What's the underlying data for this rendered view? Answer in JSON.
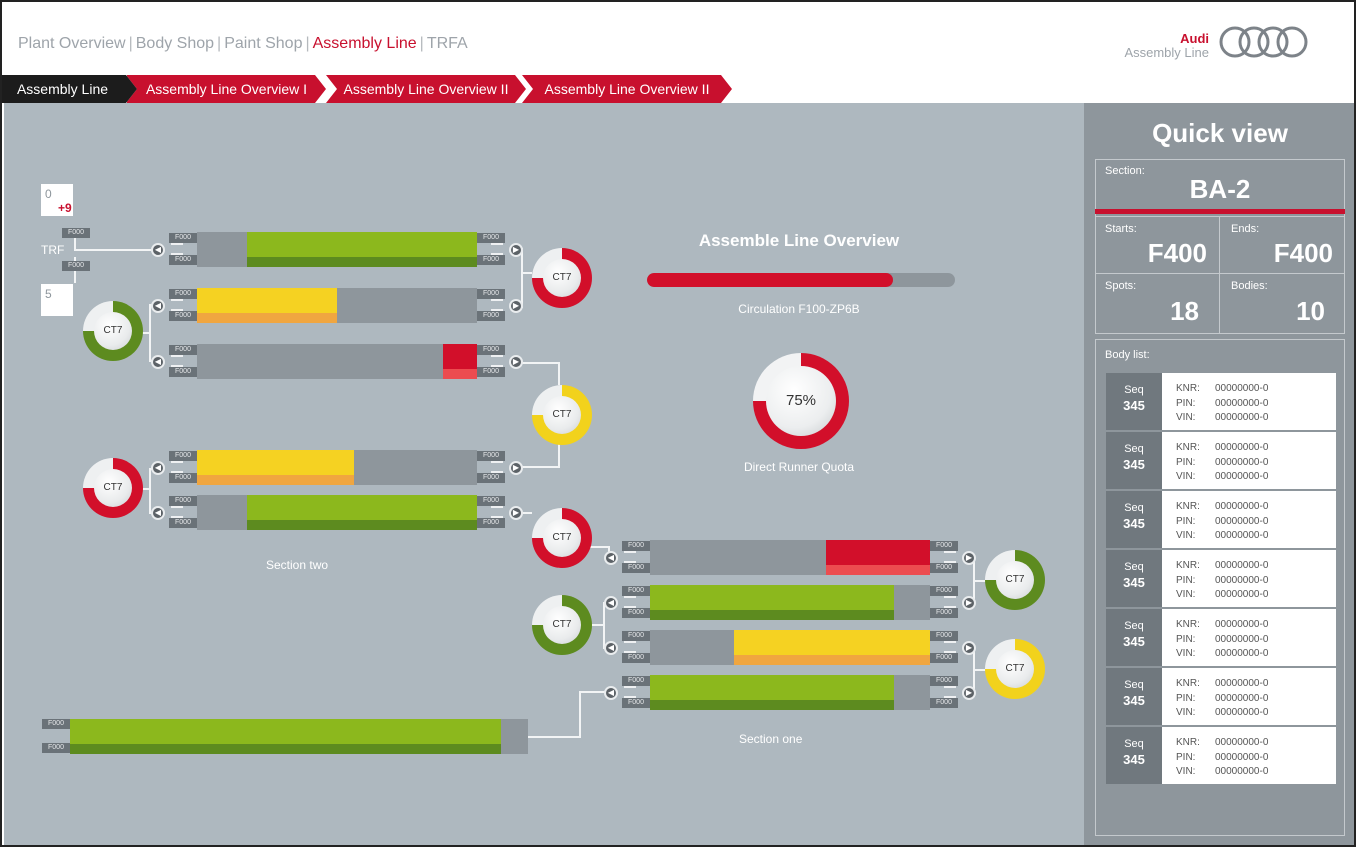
{
  "topnav": {
    "items": [
      "Plant Overview",
      "Body Shop",
      "Paint Shop",
      "Assembly Line",
      "TRFA"
    ],
    "separator": "|",
    "active_index": 3
  },
  "brand": {
    "name": "Audi",
    "subtitle": "Assembly Line"
  },
  "breadcrumb": [
    "Assembly Line",
    "Assembly Line Overview I",
    "Assembly Line Overview II",
    "Assembly Line Overview II"
  ],
  "colors": {
    "accent": "#c8102e",
    "green": "#8cb81d",
    "yellow": "#f5d222",
    "red": "#d20f2a",
    "gray": "#8e969c",
    "canvas": "#aeb8bf"
  },
  "labels": {
    "trf": "TRF",
    "station": "F000",
    "section_two": "Section two",
    "section_one": "Section one",
    "ct": "CT7"
  },
  "counters": {
    "top_value": "0",
    "top_delta": "+9",
    "bottom_value": "5"
  },
  "overview": {
    "title": "Assemble Line Overview",
    "progress_fraction": 0.8,
    "progress_label": "Circulation F100-ZP6B",
    "quota_percent_label": "75%",
    "quota_fraction": 0.75,
    "quota_label": "Direct Runner Quota"
  },
  "quick_view": {
    "title": "Quick view",
    "section_label": "Section:",
    "section_value": "BA-2",
    "starts_label": "Starts:",
    "starts_value": "F400",
    "ends_label": "Ends:",
    "ends_value": "F400",
    "spots_label": "Spots:",
    "spots_value": "18",
    "bodies_label": "Bodies:",
    "bodies_value": "10",
    "body_list_label": "Body list:",
    "body_list": [
      {
        "seq_label": "Seq",
        "seq": "345",
        "knr_label": "KNR:",
        "knr": "00000000-0",
        "pin_label": "PIN:",
        "pin": "00000000-0",
        "vin_label": "VIN:",
        "vin": "00000000-0"
      },
      {
        "seq_label": "Seq",
        "seq": "345",
        "knr_label": "KNR:",
        "knr": "00000000-0",
        "pin_label": "PIN:",
        "pin": "00000000-0",
        "vin_label": "VIN:",
        "vin": "00000000-0"
      },
      {
        "seq_label": "Seq",
        "seq": "345",
        "knr_label": "KNR:",
        "knr": "00000000-0",
        "pin_label": "PIN:",
        "pin": "00000000-0",
        "vin_label": "VIN:",
        "vin": "00000000-0"
      },
      {
        "seq_label": "Seq",
        "seq": "345",
        "knr_label": "KNR:",
        "knr": "00000000-0",
        "pin_label": "PIN:",
        "pin": "00000000-0",
        "vin_label": "VIN:",
        "vin": "00000000-0"
      },
      {
        "seq_label": "Seq",
        "seq": "345",
        "knr_label": "KNR:",
        "knr": "00000000-0",
        "pin_label": "PIN:",
        "pin": "00000000-0",
        "vin_label": "VIN:",
        "vin": "00000000-0"
      },
      {
        "seq_label": "Seq",
        "seq": "345",
        "knr_label": "KNR:",
        "knr": "00000000-0",
        "pin_label": "PIN:",
        "pin": "00000000-0",
        "vin_label": "VIN:",
        "vin": "00000000-0"
      },
      {
        "seq_label": "Seq",
        "seq": "345",
        "knr_label": "KNR:",
        "knr": "00000000-0",
        "pin_label": "PIN:",
        "pin": "00000000-0",
        "vin_label": "VIN:",
        "vin": "00000000-0"
      }
    ]
  },
  "lanes": [
    {
      "color": "g",
      "fill_start": 0.18,
      "fill_end": 1.0,
      "status": "green"
    },
    {
      "color": "y",
      "fill_start": 0.0,
      "fill_end": 0.5,
      "status": "yellow"
    },
    {
      "color": "r",
      "fill_start": 0.88,
      "fill_end": 1.0,
      "status": "red"
    },
    {
      "color": "y",
      "fill_start": 0.0,
      "fill_end": 0.56,
      "status": "yellow"
    },
    {
      "color": "g",
      "fill_start": 0.18,
      "fill_end": 1.0,
      "status": "green"
    },
    {
      "color": "r",
      "fill_start": 0.63,
      "fill_end": 1.0,
      "status": "red"
    },
    {
      "color": "g",
      "fill_start": 0.0,
      "fill_end": 0.87,
      "status": "green"
    },
    {
      "color": "y",
      "fill_start": 0.3,
      "fill_end": 1.0,
      "status": "yellow"
    },
    {
      "color": "g",
      "fill_start": 0.0,
      "fill_end": 0.87,
      "status": "green"
    },
    {
      "color": "g",
      "fill_start": 0.0,
      "fill_end": 0.94,
      "status": "green"
    }
  ],
  "gauges": [
    {
      "status": "red",
      "fraction": 0.75
    },
    {
      "status": "green",
      "fraction": 0.75
    },
    {
      "status": "yellow",
      "fraction": 0.75
    },
    {
      "status": "red",
      "fraction": 0.75
    },
    {
      "status": "red",
      "fraction": 0.75
    },
    {
      "status": "green",
      "fraction": 0.75
    },
    {
      "status": "green",
      "fraction": 0.75
    },
    {
      "status": "yellow",
      "fraction": 0.75
    }
  ]
}
